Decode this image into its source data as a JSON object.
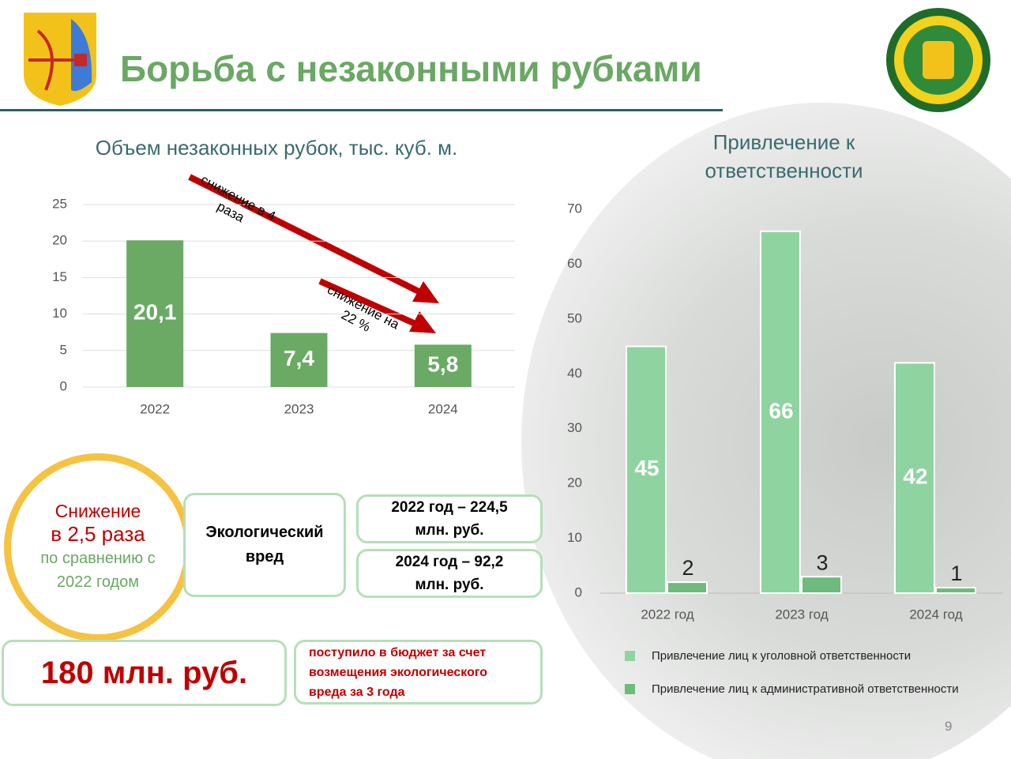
{
  "header": {
    "title": "Борьба с незаконными рубками",
    "page_number": "9"
  },
  "chart_data": [
    {
      "type": "bar",
      "title": "Объем незаконных рубок, тыс. куб. м.",
      "categories": [
        "2022",
        "2023",
        "2024"
      ],
      "values": [
        20.1,
        7.4,
        5.8
      ],
      "value_labels": [
        "20,1",
        "7,4",
        "5,8"
      ],
      "color": "#6aaa64",
      "ylim": [
        0,
        25
      ],
      "yticks": [
        0,
        5,
        10,
        15,
        20,
        25
      ],
      "grid": true,
      "annotations": [
        "снижение в 4 раза",
        "снижение на 22 %"
      ]
    },
    {
      "type": "bar",
      "title": "Привлечение к ответственности",
      "categories": [
        "2022 год",
        "2023 год",
        "2024 год"
      ],
      "series": [
        {
          "name": "Привлечение лиц к уголовной ответственности",
          "color": "#8fd4a0",
          "values": [
            45,
            66,
            42
          ]
        },
        {
          "name": "Привлечение лиц к административной ответственности",
          "color": "#6dbb7d",
          "values": [
            2,
            3,
            1
          ]
        }
      ],
      "ylim": [
        0,
        70
      ],
      "yticks": [
        0,
        10,
        20,
        30,
        40,
        50,
        60,
        70
      ],
      "grid": false
    }
  ],
  "panels": {
    "circle": {
      "line1": "Снижение",
      "line2": "в 2,5 раза",
      "line3": "по сравнению с 2022 годом"
    },
    "harm_label": "Экологический вред",
    "harm_2022": "2022 год – 224,5 млн. руб.",
    "harm_2024": "2024 год – 92,2 млн. руб.",
    "budget_total": "180 млн. руб.",
    "budget_note": "поступило в бюджет за счет возмещения экологического вреда за 3 года"
  }
}
